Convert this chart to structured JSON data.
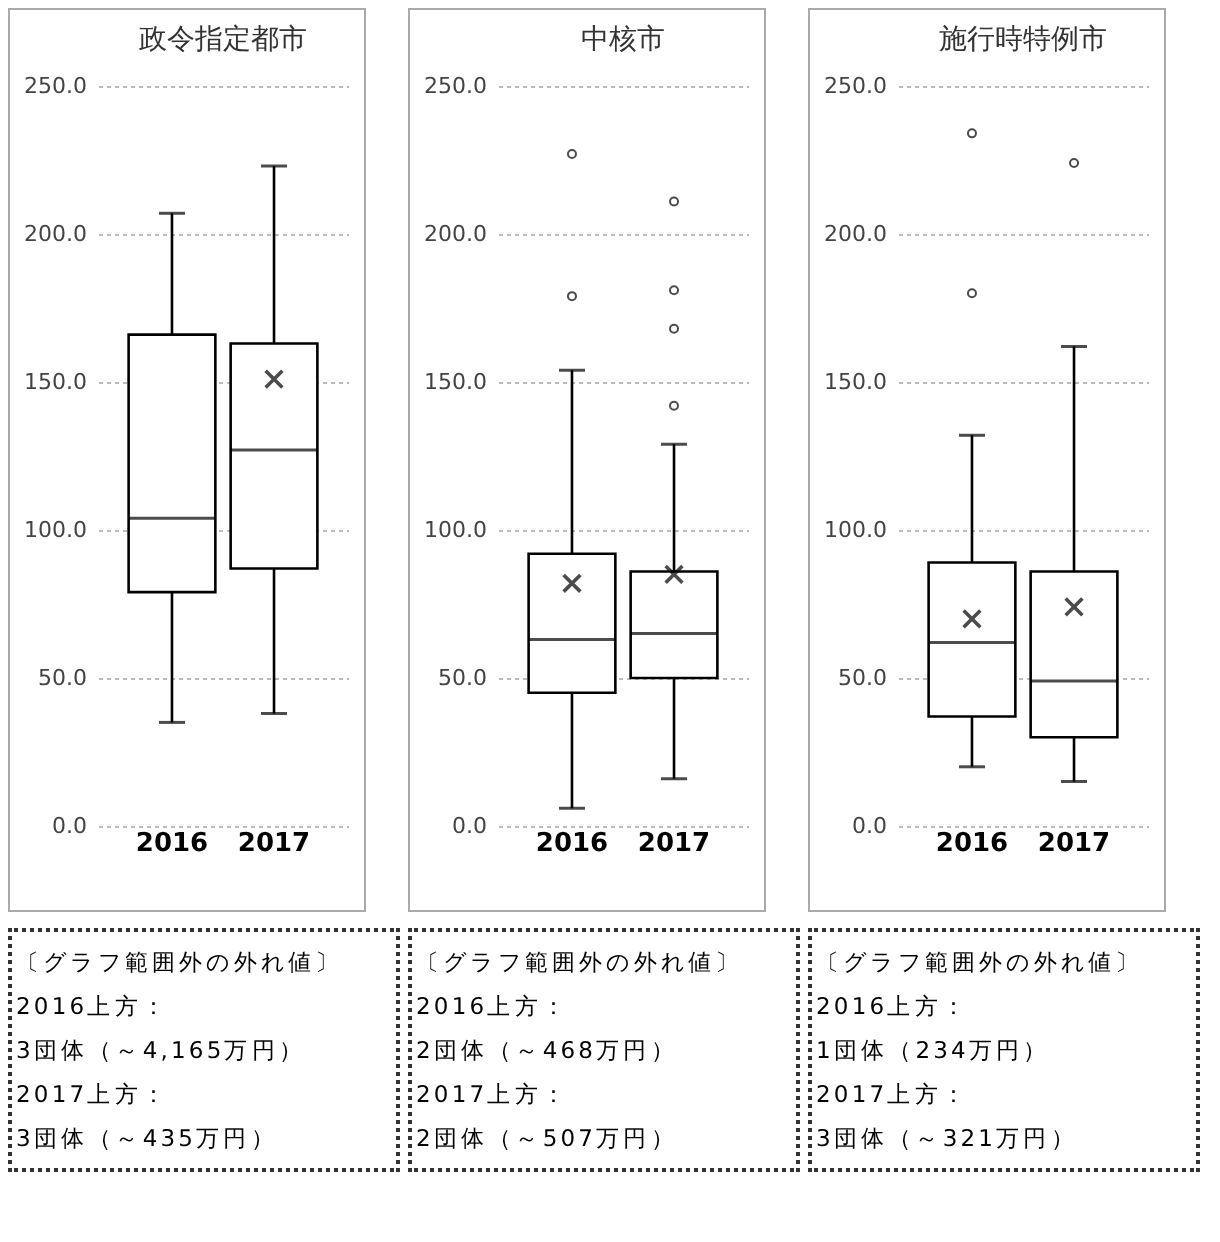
{
  "chart_data": [
    {
      "type": "box",
      "title": "政令指定都市",
      "categories": [
        "2016",
        "2017"
      ],
      "boxes": [
        {
          "low": 35,
          "q1": 79,
          "median": 104,
          "q3": 166,
          "high": 207
        },
        {
          "low": 38,
          "q1": 87,
          "median": 127,
          "q3": 163,
          "high": 223,
          "mean": 151
        }
      ],
      "ylim": [
        0,
        250
      ],
      "yticks": [
        {
          "value": 0,
          "label": "0.0"
        },
        {
          "value": 50,
          "label": "50.0"
        },
        {
          "value": 100,
          "label": "100.0"
        },
        {
          "value": 150,
          "label": "150.0"
        },
        {
          "value": 200,
          "label": "200.0"
        },
        {
          "value": 250,
          "label": "250.0"
        }
      ],
      "grid": "y",
      "annotations": [
        "〔グラフ範囲外の外れ値〕",
        "2016上方：",
        "3団体（～4,165万円）",
        "2017上方：",
        "3団体（～435万円）"
      ]
    },
    {
      "type": "box",
      "title": "中核市",
      "categories": [
        "2016",
        "2017"
      ],
      "boxes": [
        {
          "low": 6,
          "q1": 45,
          "median": 63,
          "q3": 92,
          "high": 154,
          "mean": 82,
          "outliers": [
            179,
            227
          ]
        },
        {
          "low": 16,
          "q1": 50,
          "median": 65,
          "q3": 86,
          "high": 129,
          "mean": 85,
          "outliers": [
            142,
            168,
            181,
            211
          ]
        }
      ],
      "ylim": [
        0,
        250
      ],
      "yticks": [
        {
          "value": 0,
          "label": "0.0"
        },
        {
          "value": 50,
          "label": "50.0"
        },
        {
          "value": 100,
          "label": "100.0"
        },
        {
          "value": 150,
          "label": "150.0"
        },
        {
          "value": 200,
          "label": "200.0"
        },
        {
          "value": 250,
          "label": "250.0"
        }
      ],
      "grid": "y",
      "annotations": [
        "〔グラフ範囲外の外れ値〕",
        "2016上方：",
        "2団体（～468万円）",
        "2017上方：",
        "2団体（～507万円）"
      ]
    },
    {
      "type": "box",
      "title": "施行時特例市",
      "categories": [
        "2016",
        "2017"
      ],
      "boxes": [
        {
          "low": 20,
          "q1": 37,
          "median": 62,
          "q3": 89,
          "high": 132,
          "mean": 70,
          "outliers": [
            180,
            234
          ]
        },
        {
          "low": 15,
          "q1": 30,
          "median": 49,
          "q3": 86,
          "high": 162,
          "mean": 74,
          "outliers": [
            224
          ]
        }
      ],
      "ylim": [
        0,
        250
      ],
      "yticks": [
        {
          "value": 0,
          "label": "0.0"
        },
        {
          "value": 50,
          "label": "50.0"
        },
        {
          "value": 100,
          "label": "100.0"
        },
        {
          "value": 150,
          "label": "150.0"
        },
        {
          "value": 200,
          "label": "200.0"
        },
        {
          "value": 250,
          "label": "250.0"
        }
      ],
      "grid": "y",
      "annotations": [
        "〔グラフ範囲外の外れ値〕",
        "2016上方：",
        "1団体（234万円）",
        "2017上方：",
        "3団体（～321万円）"
      ]
    }
  ]
}
